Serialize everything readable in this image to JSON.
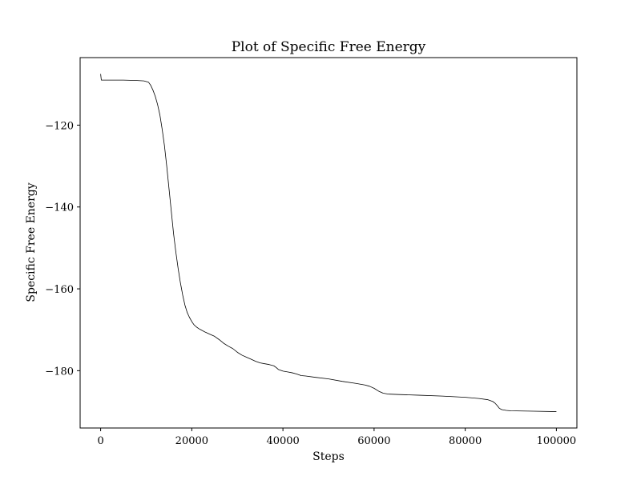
{
  "chart_data": {
    "type": "line",
    "title": "Plot of Specific Free Energy",
    "xlabel": "Steps",
    "ylabel": "Specific Free Energy",
    "xlim": [
      -4500,
      104500
    ],
    "ylim": [
      -194,
      -103.5
    ],
    "x_ticks": [
      0,
      20000,
      40000,
      60000,
      80000,
      100000
    ],
    "x_tick_labels": [
      "0",
      "20000",
      "40000",
      "60000",
      "80000",
      "100000"
    ],
    "y_ticks": [
      -120,
      -140,
      -160,
      -180
    ],
    "y_tick_labels": [
      "−120",
      "−140",
      "−160",
      "−180"
    ],
    "grid": false,
    "legend": "none",
    "line_color": "#000000",
    "series": [
      {
        "x": [
          0,
          50,
          150,
          500,
          2000,
          5000,
          8000,
          9500,
          10500,
          11000,
          11500,
          12000,
          12500,
          13000,
          13500,
          14000,
          14500,
          15000,
          15500,
          16000,
          16500,
          17000,
          17500,
          18000,
          18500,
          19000,
          19500,
          20000,
          20500,
          21000,
          21500,
          22000,
          23000,
          24000,
          25000,
          26000,
          27000,
          28000,
          29000,
          30000,
          31000,
          32000,
          33000,
          34000,
          35000,
          36000,
          37000,
          38000,
          38500,
          39000,
          40000,
          41000,
          42000,
          43000,
          44000,
          45000,
          47000,
          50000,
          53000,
          56000,
          58000,
          59000,
          60000,
          61000,
          62000,
          63000,
          65000,
          70000,
          75000,
          80000,
          83000,
          85000,
          86000,
          86500,
          87000,
          87500,
          88000,
          89000,
          90000,
          95000,
          100000
        ],
        "y": [
          -107.5,
          -108.0,
          -109.0,
          -109.0,
          -109.0,
          -109.0,
          -109.1,
          -109.2,
          -109.5,
          -110.3,
          -111.5,
          -113.0,
          -115.0,
          -117.5,
          -121.0,
          -125.0,
          -130.0,
          -135.5,
          -141.0,
          -146.5,
          -151.0,
          -155.0,
          -158.5,
          -161.5,
          -164.0,
          -165.8,
          -167.0,
          -168.0,
          -168.8,
          -169.3,
          -169.7,
          -170.0,
          -170.6,
          -171.1,
          -171.6,
          -172.4,
          -173.3,
          -174.0,
          -174.6,
          -175.5,
          -176.2,
          -176.7,
          -177.2,
          -177.7,
          -178.1,
          -178.3,
          -178.5,
          -178.8,
          -179.2,
          -179.7,
          -180.1,
          -180.3,
          -180.5,
          -180.8,
          -181.2,
          -181.3,
          -181.6,
          -182.0,
          -182.6,
          -183.1,
          -183.5,
          -183.8,
          -184.3,
          -185.0,
          -185.5,
          -185.7,
          -185.8,
          -186.0,
          -186.2,
          -186.5,
          -186.8,
          -187.1,
          -187.5,
          -187.9,
          -188.5,
          -189.2,
          -189.5,
          -189.7,
          -189.8,
          -189.9,
          -190.0
        ]
      }
    ]
  }
}
